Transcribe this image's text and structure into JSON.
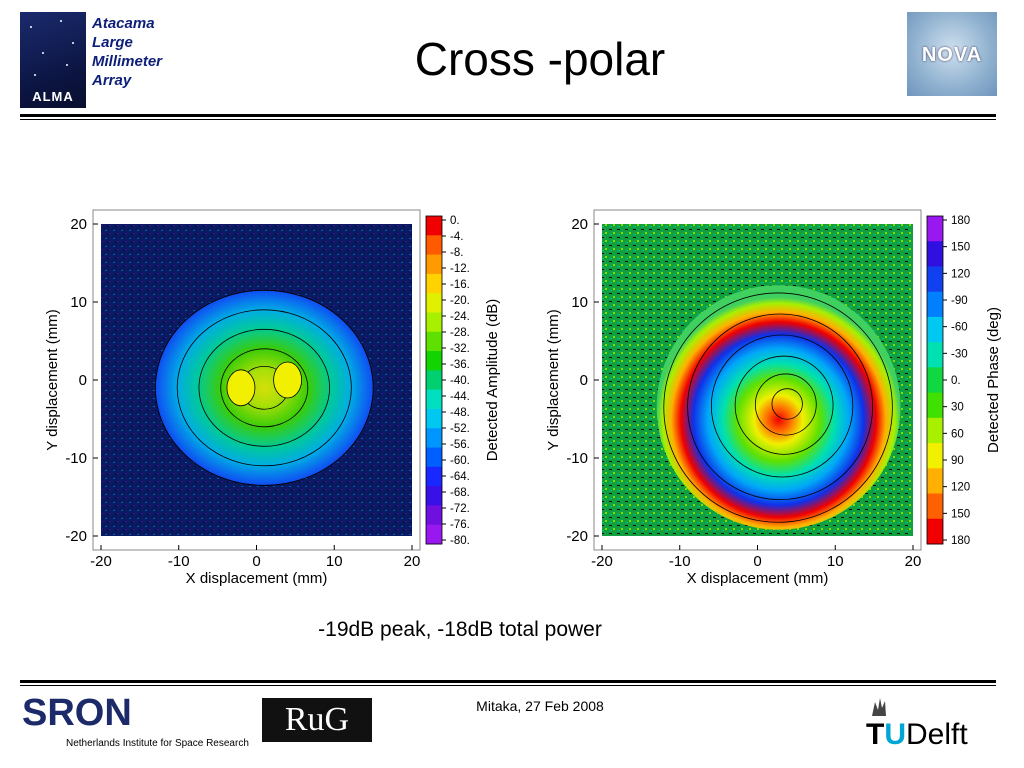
{
  "header": {
    "title": "Cross -polar",
    "alma": {
      "line1": "Atacama",
      "line2": "Large",
      "line3": "Millimeter",
      "line4": "Array",
      "badge": "ALMA"
    },
    "nova": {
      "label": "NOVA"
    }
  },
  "caption": "-19dB peak, -18dB total power",
  "footer": {
    "date": "Mitaka, 27 Feb 2008",
    "sron": {
      "name": "RON",
      "initial": "S",
      "subtitle": "Netherlands Institute for Space Research"
    },
    "rug": {
      "name": "RuG"
    },
    "tudelft": {
      "tu_t": "T",
      "tu_u": "U",
      "delft": "Delft"
    }
  },
  "colors": {
    "amplitude_scale": [
      "#f00000",
      "#ff5a00",
      "#ff9a00",
      "#ffd200",
      "#e0f000",
      "#a8f000",
      "#5ee000",
      "#12d400",
      "#00d070",
      "#00e0c0",
      "#00c8f0",
      "#0096ff",
      "#0060ff",
      "#1828ff",
      "#3a10e8",
      "#7010e0",
      "#9a18f0"
    ],
    "phase_scale": [
      "#9a18f0",
      "#3010e0",
      "#1040f0",
      "#0080ff",
      "#00c8f0",
      "#00e0b0",
      "#10d840",
      "#40e000",
      "#a8f000",
      "#f0f000",
      "#ffb000",
      "#ff6000",
      "#f00000"
    ]
  },
  "chart_data": [
    {
      "type": "heatmap",
      "title": "",
      "xlabel": "X displacement (mm)",
      "ylabel": "Y displacement (mm)",
      "xlim": [
        -20,
        20
      ],
      "ylim": [
        -20,
        20
      ],
      "xticks": [
        "-20",
        "-10",
        "0",
        "10",
        "20"
      ],
      "yticks": [
        "20",
        "10",
        "0",
        "-10",
        "-20"
      ],
      "colorbar": {
        "label": "Detected Amplitude (dB)",
        "ticks": [
          "0.",
          "-4.",
          "-8.",
          "-12.",
          "-16.",
          "-20.",
          "-24.",
          "-28.",
          "-32.",
          "-36.",
          "-40.",
          "-44.",
          "-48.",
          "-52.",
          "-56.",
          "-60.",
          "-64.",
          "-68.",
          "-72.",
          "-76.",
          "-80."
        ],
        "range": [
          -80,
          0
        ]
      },
      "features": {
        "peak_level_db": -19,
        "lobes": [
          {
            "x": -2,
            "y": -1
          },
          {
            "x": 4,
            "y": 0
          }
        ]
      }
    },
    {
      "type": "heatmap",
      "title": "",
      "xlabel": "X displacement (mm)",
      "ylabel": "Y displacement (mm)",
      "xlim": [
        -20,
        20
      ],
      "ylim": [
        -20,
        20
      ],
      "xticks": [
        "-20",
        "-10",
        "0",
        "10",
        "20"
      ],
      "yticks": [
        "20",
        "10",
        "0",
        "-10",
        "-20"
      ],
      "colorbar": {
        "label": "Detected Phase (deg)",
        "ticks": [
          "180",
          "150",
          "120",
          "-90",
          "-60",
          "-30",
          "0.",
          "30",
          "60",
          "90",
          "120",
          "150",
          "180"
        ],
        "range": [
          -180,
          180
        ]
      },
      "features": {
        "center": {
          "x": 4,
          "y": -3
        }
      }
    }
  ]
}
